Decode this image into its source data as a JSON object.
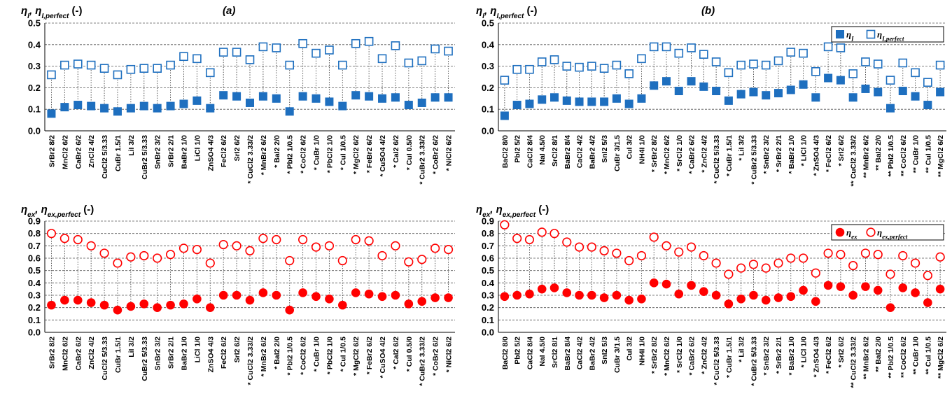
{
  "chart_data": [
    {
      "id": "a-top",
      "type": "scatter",
      "panel_label": "(a)",
      "title": "η_I, η_I,perfect (-)",
      "title_parts": [
        "η",
        "I",
        ", η",
        "I,perfect",
        " (-)"
      ],
      "yticks": [
        "0.0",
        "0.1",
        "0.2",
        "0.3",
        "0.4",
        "0.5"
      ],
      "ylim": [
        0,
        0.5
      ],
      "grid": true,
      "legend": null,
      "categories": [
        "SrBr2  8/2",
        "MnCl2  6/2",
        "CaBr2  6/2",
        "ZnCl2  4/2",
        "CuCl2 5/3.33",
        "CuBr  1.5/1",
        "LiI  3/2",
        "CuBr2 5/3.33",
        "SnBr2  3/2",
        "SrBr2  2/1",
        "BaBr2  1/0",
        "LiCl  1/0",
        "ZnSO4  4/3",
        "FeCl2  6/2",
        "SrI2  6/2",
        "* CuCl2 3.33/2",
        "* MnBr2  6/2",
        "* BaI2  2/0",
        "* PbI2  1/0.5",
        "* CoCl2  6/2",
        "* CuBr  1/0",
        "* PbCl2  1/0",
        "* CuI  1/0.5",
        "* MgCl2  6/2",
        "* FeBr2  6/2",
        "* CuSO4  4/2",
        "* CaI2  6/2",
        "* CuI  0.5/0",
        "* CuBr2 3.33/2",
        "* CoBr2  6/2",
        "* NiCl2  6/2"
      ],
      "series": [
        {
          "name": "η_I",
          "legend_parts": [
            "η",
            "I"
          ],
          "marker": "filled-square",
          "color": "#1e6fbf",
          "values": [
            0.08,
            0.11,
            0.12,
            0.115,
            0.105,
            0.09,
            0.105,
            0.115,
            0.105,
            0.115,
            0.125,
            0.14,
            0.105,
            0.165,
            0.16,
            0.13,
            0.16,
            0.15,
            0.09,
            0.16,
            0.15,
            0.135,
            0.115,
            0.165,
            0.16,
            0.15,
            0.155,
            0.12,
            0.13,
            0.155,
            0.155
          ]
        },
        {
          "name": "η_I,perfect",
          "legend_parts": [
            "η",
            "I,perfect"
          ],
          "marker": "open-square",
          "color": "#1e6fbf",
          "values": [
            0.26,
            0.305,
            0.31,
            0.305,
            0.29,
            0.26,
            0.285,
            0.29,
            0.29,
            0.305,
            0.345,
            0.335,
            0.27,
            0.365,
            0.365,
            0.33,
            0.39,
            0.385,
            0.305,
            0.405,
            0.36,
            0.375,
            0.305,
            0.405,
            0.415,
            0.335,
            0.395,
            0.315,
            0.325,
            0.38,
            0.37
          ]
        }
      ]
    },
    {
      "id": "b-top",
      "type": "scatter",
      "panel_label": "(b)",
      "title": "η_I, η_I,perfect (-)",
      "title_parts": [
        "η",
        "I",
        ", η",
        "I,perfect",
        " (-)"
      ],
      "yticks": [
        "0.0",
        "0.1",
        "0.2",
        "0.3",
        "0.4",
        "0.5"
      ],
      "ylim": [
        0,
        0.5
      ],
      "grid": true,
      "legend": "top-right",
      "categories": [
        "BaCl2  8/0",
        "PbI2  5/2",
        "CaCl2  8/4",
        "NaI  4.5/0",
        "SrCl2  8/1",
        "BaBr2  8/4",
        "CaCl2  4/2",
        "BaBr2  4/2",
        "SnI2  5/3",
        "CuBr  3/1.5",
        "CuI  3/2",
        "NH4I  1/0",
        "* SrBr2  8/2",
        "* MnCl2  6/2",
        "* SrCl2  1/0",
        "* CaBr2  6/2",
        "* ZnCl2  4/2",
        "* CuCl2 5/3.33",
        "* CuBr  1.5/1",
        "* LiI  3/2",
        "* CuBr2 5/3.33",
        "* SnBr2  3/2",
        "* SrBr2  2/1",
        "* BaBr2  1/0",
        "* LiCl  1/0",
        "* ZnSO4  4/3",
        "* FeCl2  6/2",
        "* SrI2  6/2",
        "** CuCl2 3.33/2",
        "** MnBr2  6/2",
        "** BaI2  2/0",
        "** PbI2  1/0.5",
        "** CoCl2  6/2",
        "** CuBr  1/0",
        "** CuI  1/0.5",
        "** MgCl2  6/2"
      ],
      "series": [
        {
          "name": "η_I",
          "legend_parts": [
            "η",
            "I"
          ],
          "marker": "filled-square",
          "color": "#1e6fbf",
          "values": [
            0.07,
            0.12,
            0.125,
            0.145,
            0.155,
            0.14,
            0.135,
            0.135,
            0.135,
            0.15,
            0.125,
            0.15,
            0.21,
            0.23,
            0.185,
            0.23,
            0.205,
            0.185,
            0.14,
            0.17,
            0.18,
            0.165,
            0.175,
            0.19,
            0.215,
            0.155,
            0.245,
            0.235,
            0.155,
            0.195,
            0.18,
            0.105,
            0.185,
            0.16,
            0.12,
            0.18
          ]
        },
        {
          "name": "η_I,perfect",
          "legend_parts": [
            "η",
            "I,perfect"
          ],
          "marker": "open-square",
          "color": "#1e6fbf",
          "values": [
            0.235,
            0.285,
            0.285,
            0.32,
            0.33,
            0.3,
            0.295,
            0.3,
            0.29,
            0.305,
            0.265,
            0.335,
            0.39,
            0.39,
            0.36,
            0.385,
            0.355,
            0.32,
            0.27,
            0.305,
            0.31,
            0.305,
            0.325,
            0.365,
            0.36,
            0.275,
            0.39,
            0.385,
            0.265,
            0.32,
            0.31,
            0.235,
            0.315,
            0.27,
            0.225,
            0.305
          ]
        }
      ]
    },
    {
      "id": "a-bottom",
      "type": "scatter",
      "title": "η_ex, η_ex,perfect (-)",
      "title_parts": [
        "η",
        "ex",
        ", η",
        "ex,perfect",
        " (-)"
      ],
      "yticks": [
        "0.0",
        "0.1",
        "0.2",
        "0.3",
        "0.4",
        "0.5",
        "0.6",
        "0.7",
        "0.8",
        "0.9"
      ],
      "ylim": [
        0,
        0.9
      ],
      "grid": true,
      "legend": null,
      "categories": [
        "SrBr2  8/2",
        "MnCl2  6/2",
        "CaBr2  6/2",
        "ZnCl2  4/2",
        "CuCl2 5/3.33",
        "CuBr  1.5/1",
        "LiI  3/2",
        "CuBr2 5/3.33",
        "SnBr2  3/2",
        "SrBr2  2/1",
        "BaBr2  1/0",
        "LiCl  1/0",
        "ZnSO4  4/3",
        "FeCl2  6/2",
        "SrI2  6/2",
        "* CuCl2 3.33/2",
        "* MnBr2  6/2",
        "* BaI2  2/0",
        "* PbI2  1/0.5",
        "* CoCl2  6/2",
        "* CuBr  1/0",
        "* PbCl2  1/0",
        "* CuI  1/0.5",
        "* MgCl2  6/2",
        "* FeBr2  6/2",
        "* CuSO4  4/2",
        "* CaI2  6/2",
        "* CuI  0.5/0",
        "* CuBr2 3.33/2",
        "* CoBr2  6/2",
        "* NiCl2  6/2"
      ],
      "series": [
        {
          "name": "η_ex",
          "legend_parts": [
            "η",
            "ex"
          ],
          "marker": "filled-circle",
          "color": "#ff0000",
          "values": [
            0.22,
            0.26,
            0.26,
            0.24,
            0.22,
            0.18,
            0.21,
            0.23,
            0.2,
            0.22,
            0.23,
            0.27,
            0.2,
            0.3,
            0.3,
            0.26,
            0.32,
            0.3,
            0.18,
            0.32,
            0.29,
            0.27,
            0.22,
            0.32,
            0.31,
            0.29,
            0.3,
            0.23,
            0.25,
            0.28,
            0.28
          ]
        },
        {
          "name": "η_ex,perfect",
          "legend_parts": [
            "η",
            "ex,perfect"
          ],
          "marker": "open-circle",
          "color": "#ff0000",
          "values": [
            0.8,
            0.76,
            0.75,
            0.7,
            0.64,
            0.56,
            0.61,
            0.62,
            0.6,
            0.63,
            0.68,
            0.67,
            0.56,
            0.71,
            0.7,
            0.66,
            0.76,
            0.75,
            0.58,
            0.75,
            0.69,
            0.7,
            0.58,
            0.75,
            0.74,
            0.62,
            0.7,
            0.57,
            0.59,
            0.68,
            0.67
          ]
        }
      ]
    },
    {
      "id": "b-bottom",
      "type": "scatter",
      "title": "η_ex, η_ex,perfect (-)",
      "title_parts": [
        "η",
        "ex",
        ", η",
        "ex,perfect",
        " (-)"
      ],
      "yticks": [
        "0.0",
        "0.1",
        "0.2",
        "0.3",
        "0.4",
        "0.5",
        "0.6",
        "0.7",
        "0.8",
        "0.9"
      ],
      "ylim": [
        0,
        0.9
      ],
      "grid": true,
      "legend": "top-right",
      "categories": [
        "BaCl2  8/0",
        "PbI2  5/2",
        "CaCl2  8/4",
        "NaI  4.5/0",
        "SrCl2  8/1",
        "BaBr2  8/4",
        "CaCl2  4/2",
        "BaBr2  4/2",
        "SnI2  5/3",
        "CuBr  3/1.5",
        "CuI  3/2",
        "NH4I  1/0",
        "* SrBr2  8/2",
        "* MnCl2  6/2",
        "* SrCl2  1/0",
        "* CaBr2  6/2",
        "* ZnCl2  4/2",
        "* CuCl2 5/3.33",
        "* CuBr  1.5/1",
        "* LiI  3/2",
        "* CuBr2 5/3.33",
        "* SnBr2  3/2",
        "* SrBr2  2/1",
        "* BaBr2  1/0",
        "* LiCl  1/0",
        "* ZnSO4  4/3",
        "* FeCl2  6/2",
        "* SrI2  6/2",
        "** CuCl2 3.33/2",
        "** MnBr2  6/2",
        "** BaI2  2/0",
        "** PbI2  1/0.5",
        "** CoCl2  6/2",
        "** CuBr  1/0",
        "** CuI  1/0.5",
        "** MgCl2  6/2"
      ],
      "series": [
        {
          "name": "η_ex",
          "legend_parts": [
            "η",
            "ex"
          ],
          "marker": "filled-circle",
          "color": "#ff0000",
          "values": [
            0.29,
            0.3,
            0.31,
            0.35,
            0.36,
            0.32,
            0.3,
            0.3,
            0.28,
            0.3,
            0.26,
            0.27,
            0.4,
            0.39,
            0.31,
            0.38,
            0.33,
            0.3,
            0.23,
            0.27,
            0.3,
            0.26,
            0.28,
            0.29,
            0.34,
            0.25,
            0.38,
            0.37,
            0.3,
            0.37,
            0.34,
            0.2,
            0.36,
            0.32,
            0.24,
            0.35
          ]
        },
        {
          "name": "η_ex,perfect",
          "legend_parts": [
            "η",
            "ex,perfect"
          ],
          "marker": "open-circle",
          "color": "#ff0000",
          "values": [
            0.87,
            0.76,
            0.75,
            0.81,
            0.8,
            0.73,
            0.69,
            0.69,
            0.66,
            0.64,
            0.58,
            0.62,
            0.77,
            0.7,
            0.65,
            0.69,
            0.62,
            0.56,
            0.47,
            0.52,
            0.55,
            0.52,
            0.56,
            0.6,
            0.6,
            0.48,
            0.64,
            0.63,
            0.54,
            0.64,
            0.63,
            0.47,
            0.62,
            0.56,
            0.46,
            0.61
          ]
        }
      ]
    }
  ]
}
